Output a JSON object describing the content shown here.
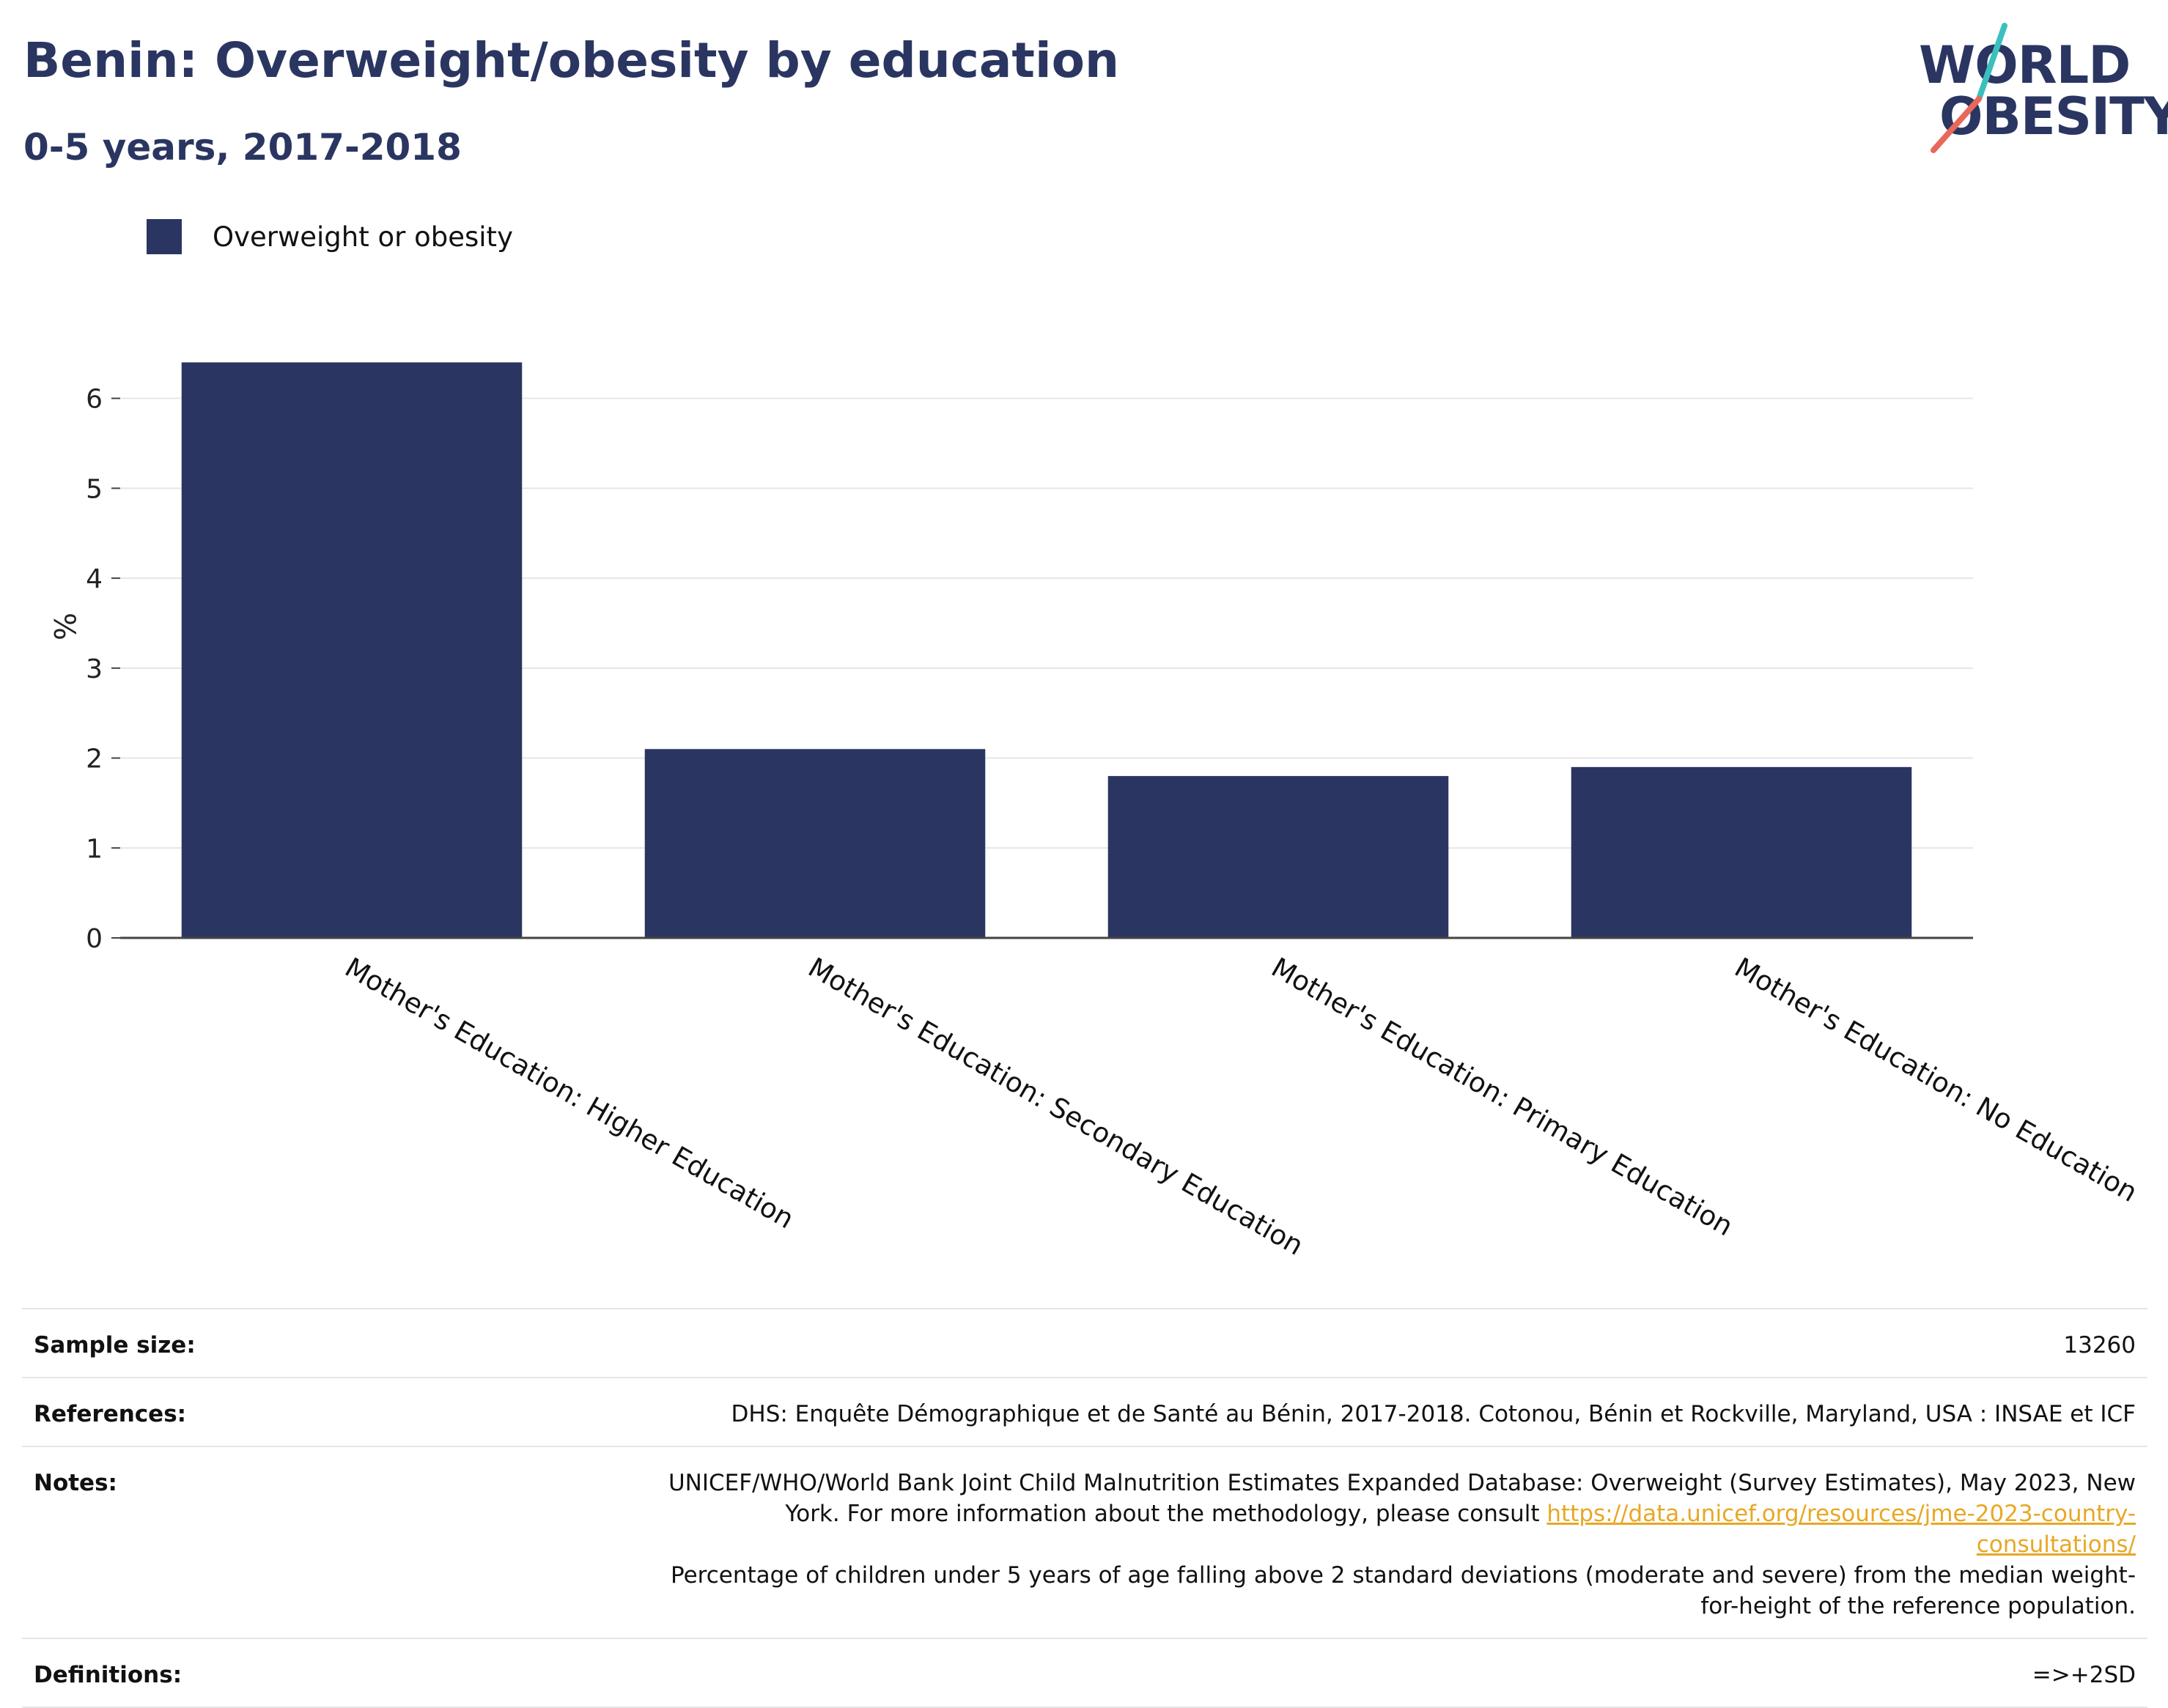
{
  "header": {
    "title": "Benin: Overweight/obesity by education",
    "subtitle": "0-5 years, 2017-2018",
    "logo_line1": "WORLD",
    "logo_line2": "OBESITY"
  },
  "colors": {
    "title": "#2a3661",
    "bar": "#2a3661",
    "grid": "#e6e6e6",
    "axis": "#444444",
    "link": "#e7a825",
    "logo_teal": "#3cbfbf",
    "logo_coral": "#e8685a"
  },
  "chart_data": {
    "type": "bar",
    "categories": [
      "Mother's Education: Higher Education",
      "Mother's Education: Secondary Education",
      "Mother's Education: Primary Education",
      "Mother's Education: No Education"
    ],
    "series": [
      {
        "name": "Overweight or obesity",
        "values": [
          6.4,
          2.1,
          1.8,
          1.9
        ]
      }
    ],
    "ylabel": "%",
    "xlabel": "",
    "ylim": [
      0,
      6.6
    ],
    "yticks": [
      0,
      1,
      2,
      3,
      4,
      5,
      6
    ],
    "grid": true,
    "legend": "top-left"
  },
  "info": {
    "sample_size_label": "Sample size:",
    "sample_size_value": "13260",
    "references_label": "References:",
    "references_value": "DHS: Enquête Démographique et de Santé au Bénin, 2017-2018. Cotonou, Bénin et Rockville, Maryland, USA : INSAE et ICF",
    "notes_label": "Notes:",
    "notes_text_1": "UNICEF/WHO/World Bank Joint Child Malnutrition Estimates Expanded Database: Overweight (Survey Estimates), May 2023, New York. For more information about the methodology, please consult ",
    "notes_link": "https://data.unicef.org/resources/jme-2023-country-consultations/",
    "notes_text_2": "Percentage of children under 5 years of age falling above 2 standard deviations (moderate and severe) from the median weight-for-height of the reference population.",
    "definitions_label": "Definitions:",
    "definitions_value": "=>+2SD"
  }
}
